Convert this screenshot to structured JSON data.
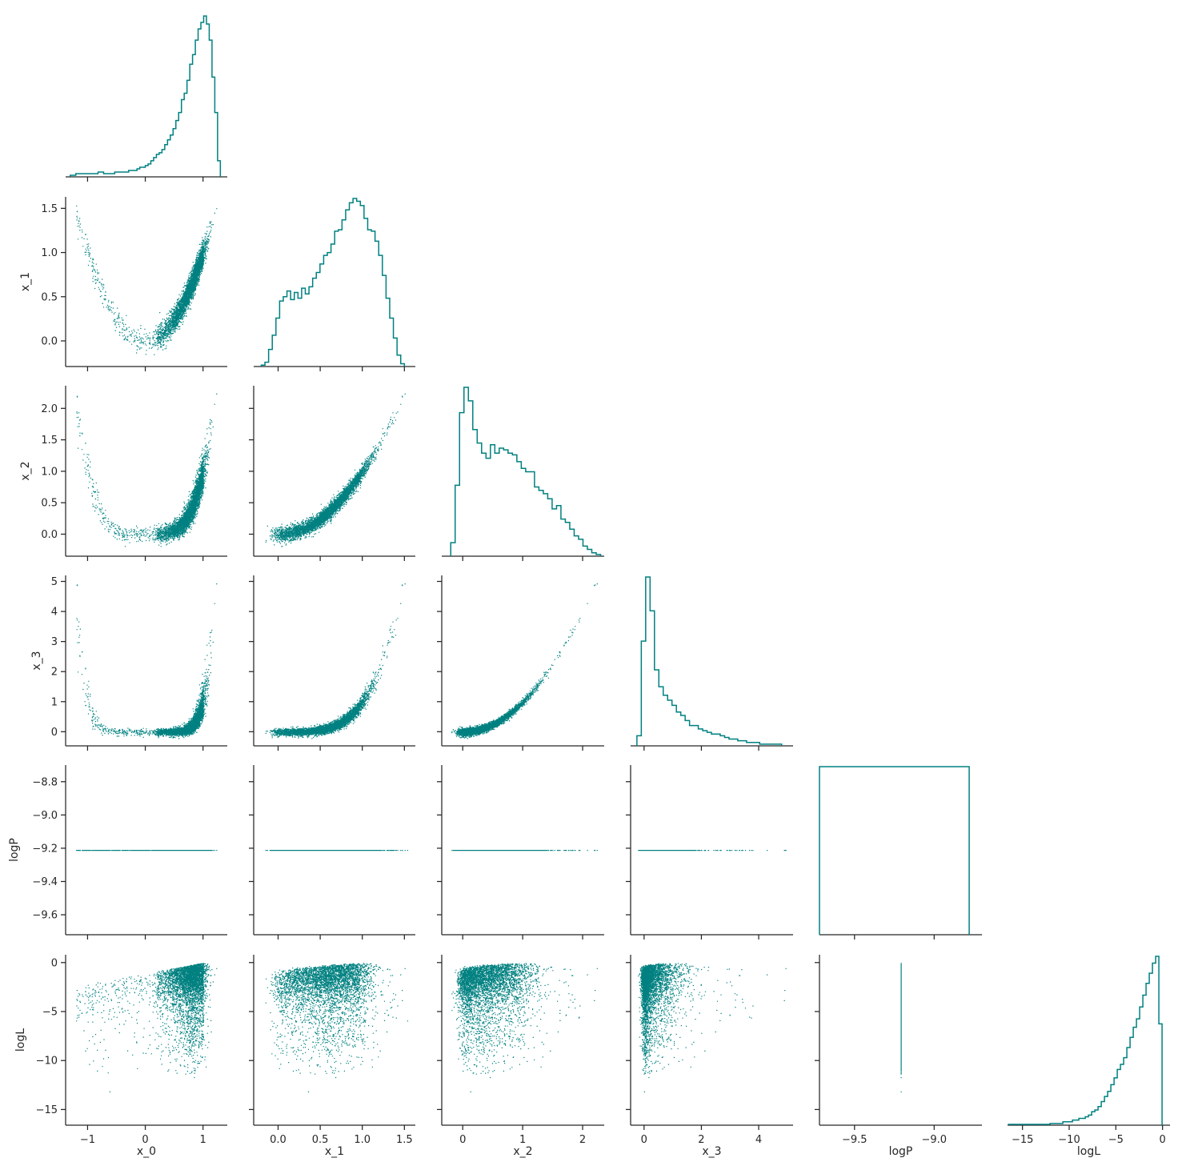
{
  "chart_data": {
    "type": "pairplot",
    "layout": "corner",
    "color": "#008080",
    "variables": [
      {
        "name": "x_0",
        "label": "x_0",
        "lim": [
          -1.38,
          1.42
        ],
        "ticks": [
          -1,
          0,
          1
        ],
        "tick_labels": [
          "−1",
          "0",
          "1"
        ]
      },
      {
        "name": "x_1",
        "label": "x_1",
        "lim": [
          -0.29,
          1.63
        ],
        "ticks": [
          0.0,
          0.5,
          1.0,
          1.5
        ],
        "tick_labels": [
          "0.0",
          "0.5",
          "1.0",
          "1.5"
        ]
      },
      {
        "name": "x_2",
        "label": "x_2",
        "lim": [
          -0.35,
          2.36
        ],
        "ticks": [
          0,
          1,
          2
        ],
        "tick_labels": [
          "0",
          "1",
          "2"
        ]
      },
      {
        "name": "x_3",
        "label": "x_3",
        "lim": [
          -0.47,
          5.2
        ],
        "ticks": [
          0,
          2,
          4
        ],
        "tick_labels": [
          "0",
          "2",
          "4"
        ]
      },
      {
        "name": "logP",
        "label": "logP",
        "lim": [
          -9.72,
          -8.7
        ],
        "ticks": [
          -9.5,
          -9.0
        ],
        "tick_labels": [
          "−9.5",
          "−9.0"
        ]
      },
      {
        "name": "logL",
        "label": "logL",
        "lim": [
          -16.6,
          0.8
        ],
        "ticks": [
          -15,
          -10,
          -5,
          0
        ],
        "tick_labels": [
          "−15",
          "−10",
          "−5",
          "0"
        ]
      }
    ],
    "y_axis_ticks": {
      "x_1": {
        "ticks": [
          0.0,
          0.5,
          1.0,
          1.5
        ],
        "tick_labels": [
          "0.0",
          "0.5",
          "1.0",
          "1.5"
        ]
      },
      "x_2": {
        "ticks": [
          0.0,
          0.5,
          1.0,
          1.5,
          2.0
        ],
        "tick_labels": [
          "0.0",
          "0.5",
          "1.0",
          "1.5",
          "2.0"
        ]
      },
      "x_3": {
        "ticks": [
          0,
          1,
          2,
          3,
          4,
          5
        ],
        "tick_labels": [
          "0",
          "1",
          "2",
          "3",
          "4",
          "5"
        ]
      },
      "logP": {
        "ticks": [
          -9.6,
          -9.4,
          -9.2,
          -9.0,
          -8.8
        ],
        "tick_labels": [
          "−9.6",
          "−9.4",
          "−9.2",
          "−9.0",
          "−8.8"
        ]
      },
      "logL": {
        "ticks": [
          -15,
          -10,
          -5,
          0
        ],
        "tick_labels": [
          "−15",
          "−10",
          "−5",
          "0"
        ]
      }
    },
    "diagonal_histograms": [
      {
        "variable": "x_0",
        "bin_edges_range": [
          -1.3,
          1.3
        ],
        "counts": [
          1,
          1,
          2,
          2,
          2,
          2,
          2,
          2,
          2,
          2,
          3,
          3,
          2,
          2,
          2,
          2,
          3,
          3,
          3,
          3,
          3,
          4,
          4,
          4,
          5,
          6,
          6,
          7,
          8,
          10,
          12,
          14,
          15,
          17,
          20,
          23,
          26,
          30,
          35,
          40,
          48,
          52,
          60,
          70,
          76,
          85,
          92,
          96,
          100,
          95,
          85,
          62,
          40,
          10
        ]
      },
      {
        "variable": "x_1",
        "bin_edges_range": [
          -0.2,
          1.5
        ],
        "counts": [
          1,
          3,
          12,
          22,
          34,
          46,
          49,
          53,
          47,
          52,
          48,
          55,
          51,
          56,
          62,
          66,
          72,
          78,
          80,
          86,
          95,
          96,
          103,
          110,
          115,
          118,
          116,
          113,
          104,
          96,
          95,
          88,
          78,
          64,
          48,
          34,
          20,
          8,
          2
        ]
      },
      {
        "variable": "x_2",
        "bin_edges_range": [
          -0.2,
          2.3
        ],
        "counts": [
          8,
          42,
          85,
          100,
          92,
          75,
          67,
          61,
          58,
          66,
          61,
          64,
          63,
          61,
          60,
          56,
          52,
          50,
          50,
          41,
          39,
          37,
          34,
          28,
          30,
          22,
          20,
          16,
          12,
          10,
          6,
          4,
          2,
          1
        ]
      },
      {
        "variable": "x_3",
        "bin_edges_range": [
          -0.25,
          4.8
        ],
        "counts": [
          6,
          62,
          100,
          80,
          45,
          35,
          30,
          27,
          24,
          20,
          18,
          15,
          12,
          12,
          10,
          9,
          8,
          7,
          7,
          6,
          5,
          4,
          4,
          3,
          3,
          2,
          2,
          2,
          1,
          1,
          1,
          1,
          1
        ]
      },
      {
        "variable": "logP",
        "bin_edges_range": [
          -9.72,
          -8.78
        ],
        "counts": [
          100
        ]
      },
      {
        "variable": "logL",
        "bin_edges_range": [
          -16.5,
          -0.05
        ],
        "counts": [
          0.5,
          0.5,
          0.5,
          0.5,
          0.5,
          0.5,
          0.5,
          0.5,
          0.5,
          0.5,
          0.5,
          0.5,
          0.5,
          1,
          1,
          1,
          1,
          2,
          2,
          2,
          3,
          3,
          4,
          4,
          5,
          6,
          8,
          9,
          11,
          14,
          17,
          20,
          24,
          28,
          33,
          36,
          40,
          46,
          52,
          58,
          63,
          70,
          77,
          84,
          90,
          96,
          100,
          60
        ]
      }
    ],
    "scatter_panels": [
      {
        "x": "x_0",
        "y": "x_1",
        "relation": "x_1 ≈ x_0^2"
      },
      {
        "x": "x_0",
        "y": "x_2",
        "relation": "x_2 ≈ x_1^2"
      },
      {
        "x": "x_1",
        "y": "x_2",
        "relation": "x_2 ≈ x_1^2"
      },
      {
        "x": "x_0",
        "y": "x_3"
      },
      {
        "x": "x_1",
        "y": "x_3"
      },
      {
        "x": "x_2",
        "y": "x_3",
        "relation": "x_3 ≈ x_2^2"
      },
      {
        "x": "x_0",
        "y": "logP",
        "constant": -9.21
      },
      {
        "x": "x_1",
        "y": "logP",
        "constant": -9.21
      },
      {
        "x": "x_2",
        "y": "logP",
        "constant": -9.21
      },
      {
        "x": "x_3",
        "y": "logP",
        "constant": -9.21
      },
      {
        "x": "x_0",
        "y": "logL"
      },
      {
        "x": "x_1",
        "y": "logL"
      },
      {
        "x": "x_2",
        "y": "logL"
      },
      {
        "x": "x_3",
        "y": "logL"
      },
      {
        "x": "logP",
        "y": "logL",
        "constant_x": -9.21
      }
    ],
    "grid": false,
    "legend": "none"
  }
}
